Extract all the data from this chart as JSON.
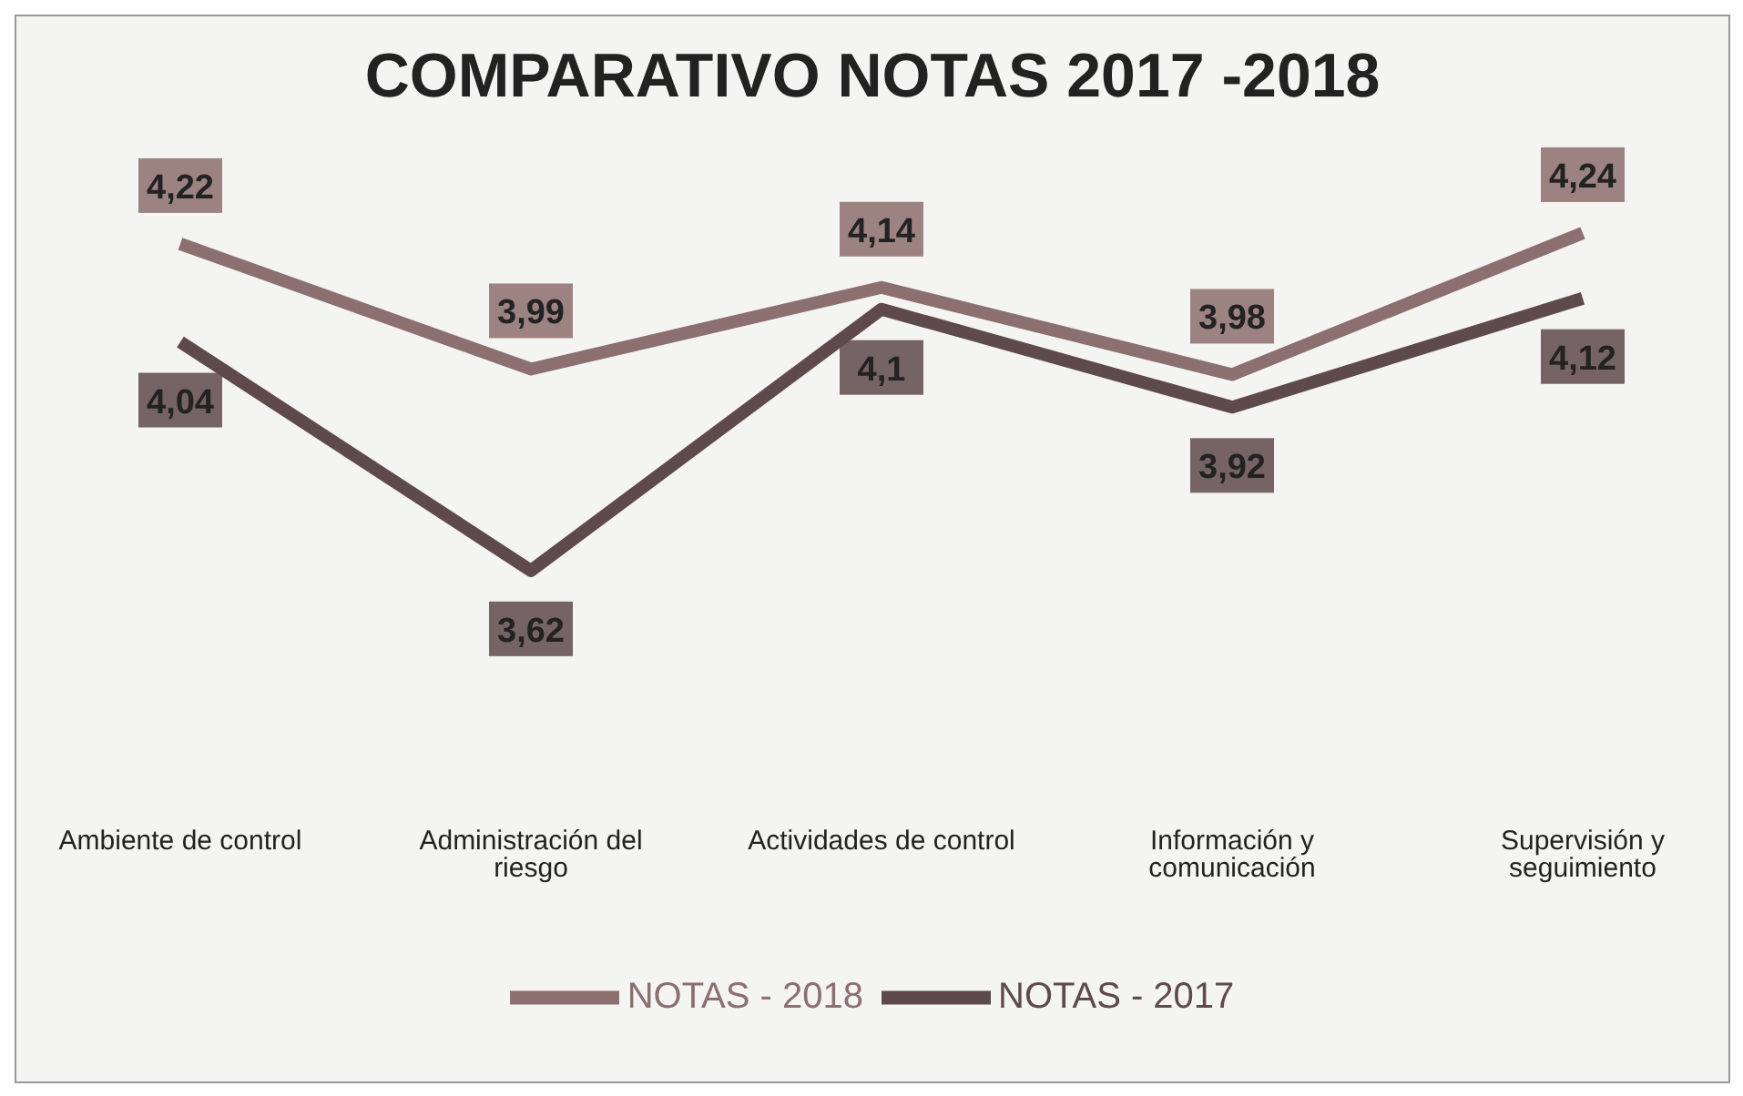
{
  "chart_data": {
    "type": "line",
    "title": "COMPARATIVO NOTAS 2017 -2018",
    "categories": [
      "Ambiente de control",
      "Administración del riesgo",
      "Actividades de control",
      "Información y comunicación",
      "Supervisión y seguimiento"
    ],
    "series": [
      {
        "name": "NOTAS - 2018",
        "color": "#8c6f6f",
        "values": [
          4.22,
          3.99,
          4.14,
          3.98,
          4.24
        ],
        "value_labels": [
          "4,22",
          "3,99",
          "4,14",
          "3,98",
          "4,24"
        ]
      },
      {
        "name": "NOTAS - 2017",
        "color": "#5e4a4a",
        "values": [
          4.04,
          3.62,
          4.1,
          3.92,
          4.12
        ],
        "value_labels": [
          "4,04",
          "3,62",
          "4,1",
          "3,92",
          "4,12"
        ]
      }
    ],
    "legend": "bottom",
    "grid": false,
    "marker": "none",
    "line_style": "solid"
  }
}
